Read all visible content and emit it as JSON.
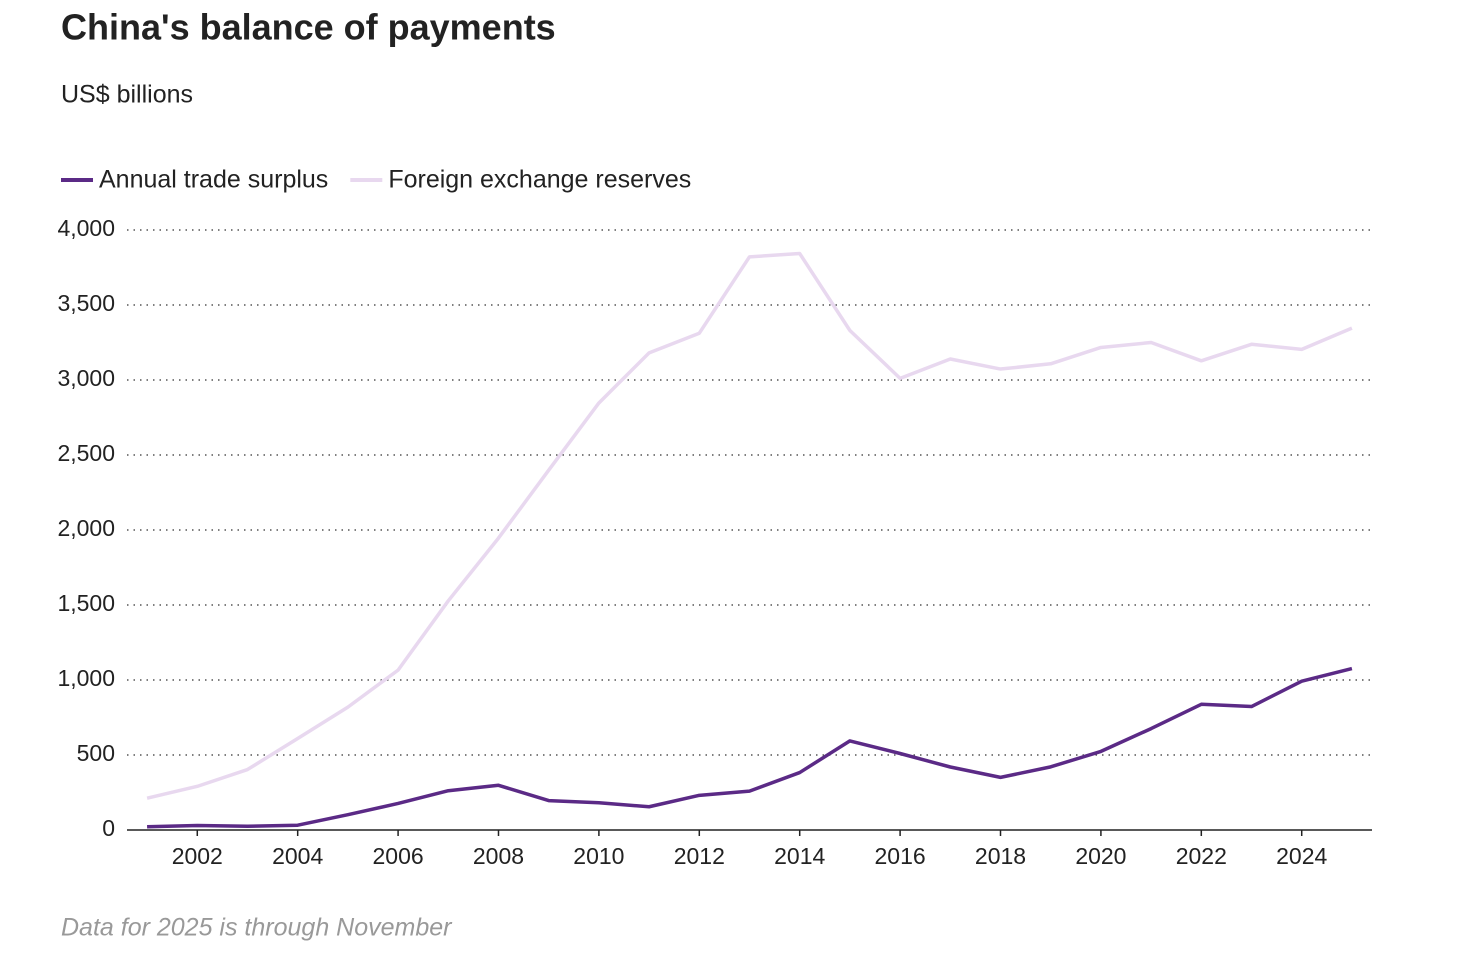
{
  "chart_data": {
    "type": "line",
    "title": "China's balance of payments",
    "subtitle": "US$ billions",
    "x": [
      2001,
      2002,
      2003,
      2004,
      2005,
      2006,
      2007,
      2008,
      2009,
      2010,
      2011,
      2012,
      2013,
      2014,
      2015,
      2016,
      2017,
      2018,
      2019,
      2020,
      2021,
      2022,
      2023,
      2024,
      2025
    ],
    "series": [
      {
        "name": "Annual trade surplus",
        "color": "#5b2a86",
        "values": [
          22,
          30,
          25,
          32,
          102,
          177,
          262,
          298,
          196,
          182,
          155,
          231,
          259,
          383,
          594,
          510,
          420,
          351,
          421,
          524,
          676,
          838,
          823,
          992,
          1076
        ]
      },
      {
        "name": "Foreign exchange reserves",
        "color": "#e8d8ef",
        "values": [
          212,
          291,
          403,
          610,
          819,
          1066,
          1528,
          1946,
          2399,
          2847,
          3181,
          3312,
          3821,
          3843,
          3330,
          3011,
          3140,
          3073,
          3108,
          3217,
          3250,
          3128,
          3238,
          3204,
          3346
        ]
      }
    ],
    "xlim": [
      2000.6,
      2025.4
    ],
    "xticks": [
      2002,
      2004,
      2006,
      2008,
      2010,
      2012,
      2014,
      2016,
      2018,
      2020,
      2022,
      2024
    ],
    "ylim": [
      0,
      4000
    ],
    "yticks": [
      0,
      500,
      {
        "value": 1000,
        "label": "1,000"
      },
      {
        "value": 1500,
        "label": "1,500"
      },
      {
        "value": 2000,
        "label": "2,000"
      },
      {
        "value": 2500,
        "label": "2,500"
      },
      {
        "value": 3000,
        "label": "3,000"
      },
      {
        "value": 3500,
        "label": "3,500"
      },
      {
        "value": 4000,
        "label": "4,000"
      }
    ],
    "grid": true,
    "legend": "top-left",
    "note": "Data for 2025 is through November"
  }
}
